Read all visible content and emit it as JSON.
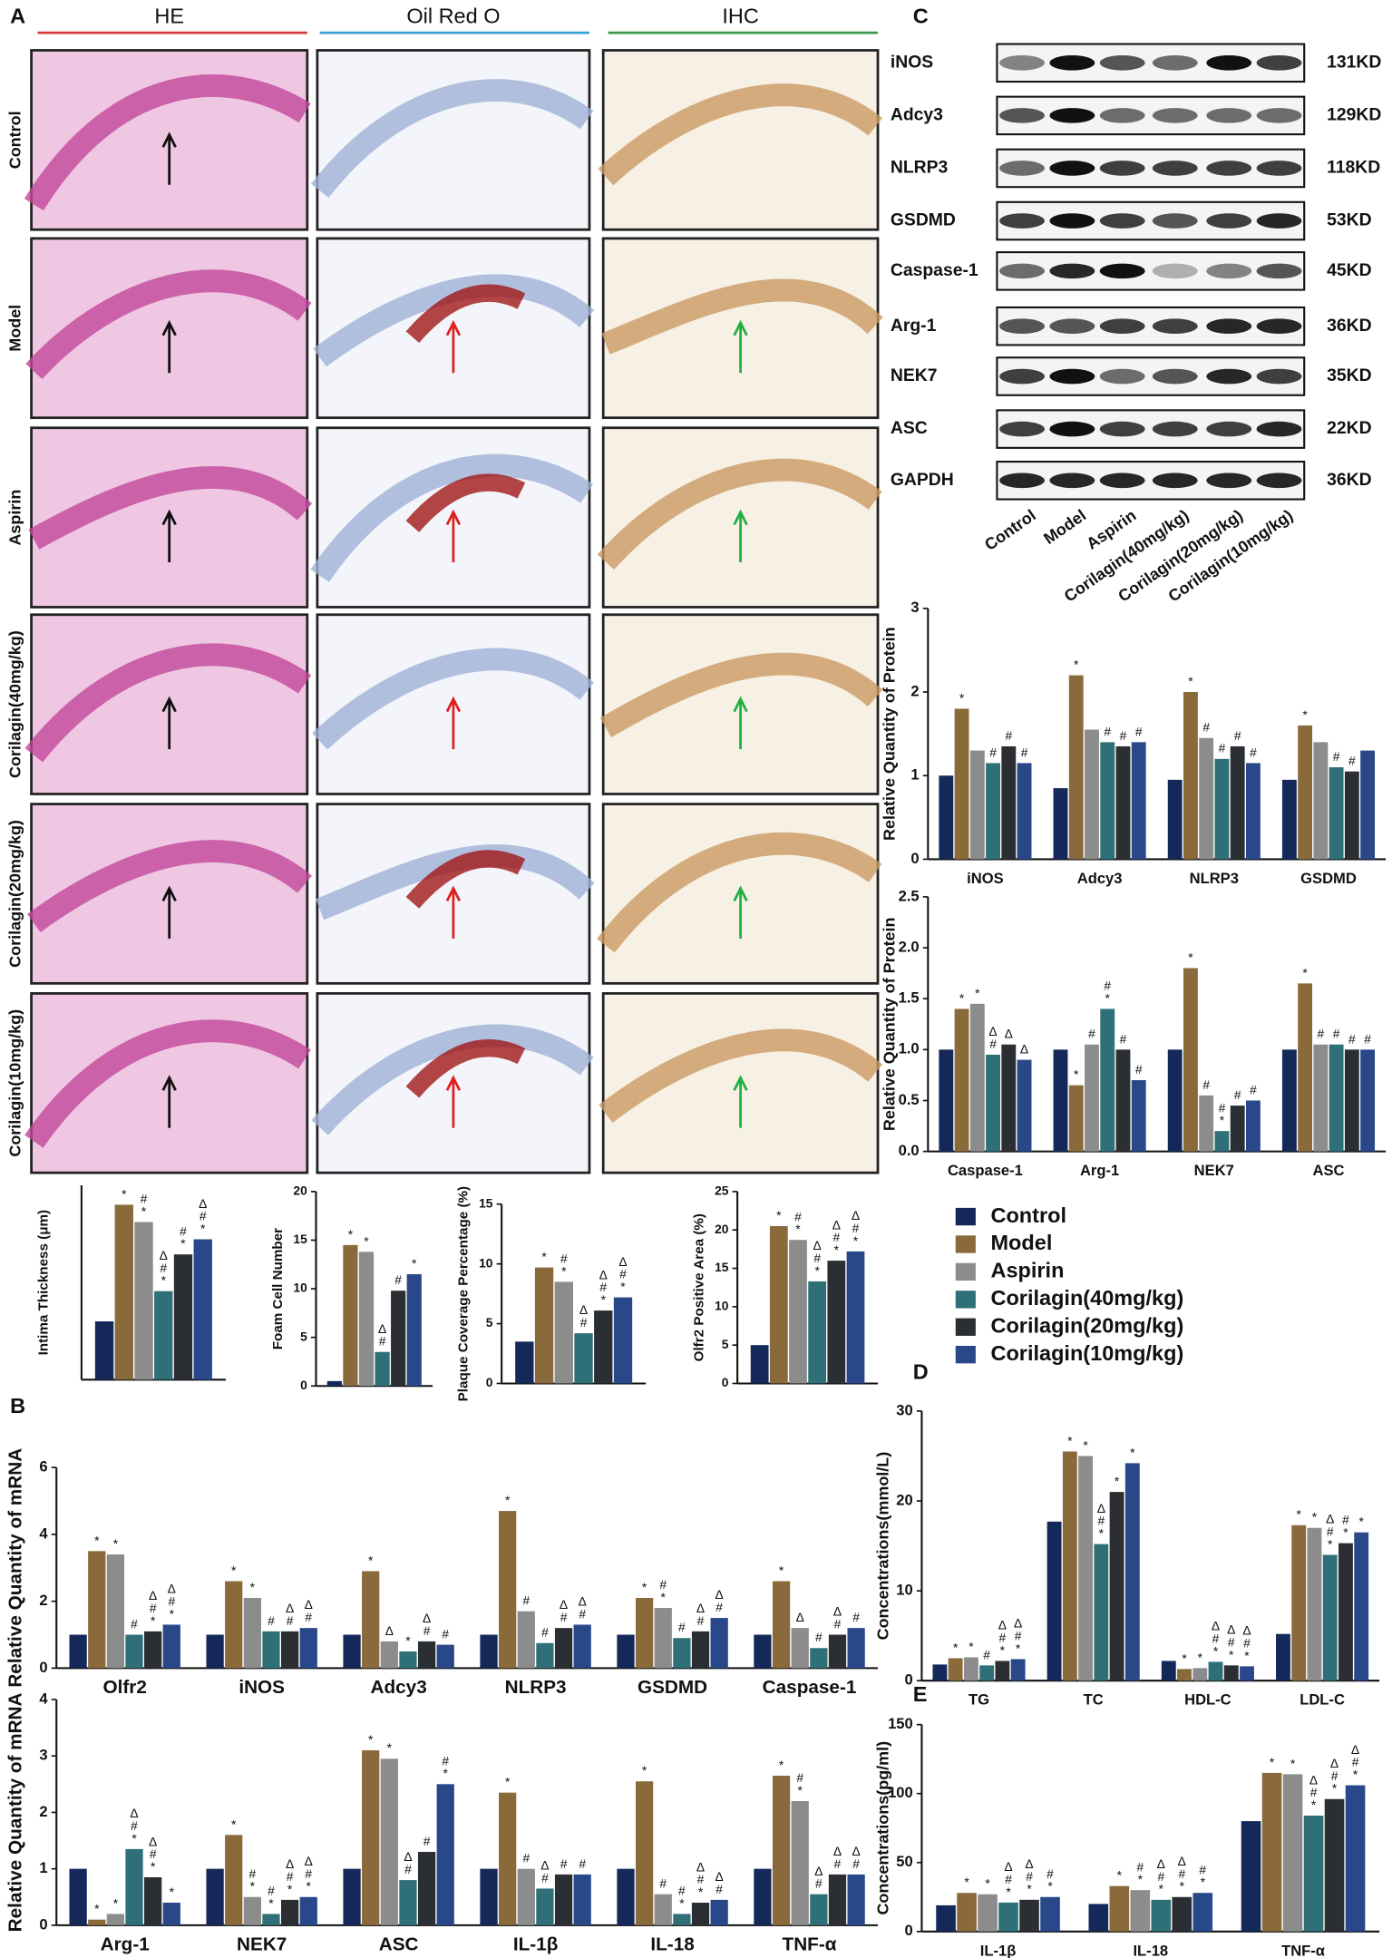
{
  "panel_labels": [
    "A",
    "B",
    "C",
    "D",
    "E"
  ],
  "micrographs": {
    "columns": [
      "HE",
      "Oil Red O",
      "IHC"
    ],
    "rows": [
      "Control",
      "Model",
      "Aspirin",
      "Corilagin(40mg/kg)",
      "Corilagin(20mg/kg)",
      "Corilagin(10mg/kg)"
    ]
  },
  "blot": {
    "proteins": [
      "iNOS",
      "Adcy3",
      "NLRP3",
      "GSDMD",
      "Caspase-1",
      "Arg-1",
      "NEK7",
      "ASC",
      "GAPDH"
    ],
    "sizes": [
      "131KD",
      "129KD",
      "118KD",
      "53KD",
      "45KD",
      "36KD",
      "35KD",
      "22KD",
      "36KD"
    ],
    "lanes": [
      "Control",
      "Model",
      "Aspirin",
      "Corilagin(40mg/kg)",
      "Corilagin(20mg/kg)",
      "Corilagin(10mg/kg)"
    ]
  },
  "chart_data": [
    {
      "type": "bar",
      "ylabel": "Intima Thickness (μm)",
      "categories": [
        null
      ],
      "ylim": [
        0,
        90
      ],
      "series": [
        {
          "name": "Control",
          "color": "#14285a",
          "values": [
            27
          ]
        },
        {
          "name": "Model",
          "color": "#8a6a3b",
          "values": [
            81
          ],
          "sig": [
            "*"
          ]
        },
        {
          "name": "Aspirin",
          "color": "#8c8c8c",
          "values": [
            73
          ],
          "sig": [
            "#*"
          ]
        },
        {
          "name": "Corilagin(40mg/kg)",
          "color": "#2f6f77",
          "values": [
            41
          ],
          "sig": [
            "Δ#*"
          ]
        },
        {
          "name": "Corilagin(20mg/kg)",
          "color": "#2b2e33",
          "values": [
            58
          ],
          "sig": [
            "#*"
          ]
        },
        {
          "name": "Corilagin(10mg/kg)",
          "color": "#28488a",
          "values": [
            65
          ],
          "sig": [
            "Δ#*"
          ]
        }
      ]
    },
    {
      "type": "bar",
      "ylabel": "Foam Cell Number",
      "categories": [
        null
      ],
      "ylim": [
        0,
        20
      ],
      "yticks": [
        0,
        5,
        10,
        15,
        20
      ],
      "series": [
        {
          "name": "Control",
          "color": "#14285a",
          "values": [
            0.5
          ]
        },
        {
          "name": "Model",
          "color": "#8a6a3b",
          "values": [
            14.5
          ],
          "sig": [
            "*"
          ]
        },
        {
          "name": "Aspirin",
          "color": "#8c8c8c",
          "values": [
            13.8
          ],
          "sig": [
            "*"
          ]
        },
        {
          "name": "Corilagin(40mg/kg)",
          "color": "#2f6f77",
          "values": [
            3.5
          ],
          "sig": [
            "Δ#"
          ]
        },
        {
          "name": "Corilagin(20mg/kg)",
          "color": "#2b2e33",
          "values": [
            9.8
          ],
          "sig": [
            "#"
          ]
        },
        {
          "name": "Corilagin(10mg/kg)",
          "color": "#28488a",
          "values": [
            11.5
          ],
          "sig": [
            "*"
          ]
        }
      ]
    },
    {
      "type": "bar",
      "ylabel": "Plaque Coverage Percentage (%)",
      "categories": [
        null
      ],
      "ylim": [
        0,
        15
      ],
      "yticks": [
        0,
        5,
        10,
        15
      ],
      "series": [
        {
          "name": "Control",
          "color": "#14285a",
          "values": [
            3.5
          ]
        },
        {
          "name": "Model",
          "color": "#8a6a3b",
          "values": [
            9.7
          ],
          "sig": [
            "*"
          ]
        },
        {
          "name": "Aspirin",
          "color": "#8c8c8c",
          "values": [
            8.5
          ],
          "sig": [
            "#*"
          ]
        },
        {
          "name": "Corilagin(40mg/kg)",
          "color": "#2f6f77",
          "values": [
            4.2
          ],
          "sig": [
            "Δ#"
          ]
        },
        {
          "name": "Corilagin(20mg/kg)",
          "color": "#2b2e33",
          "values": [
            6.1
          ],
          "sig": [
            "Δ#*"
          ]
        },
        {
          "name": "Corilagin(10mg/kg)",
          "color": "#28488a",
          "values": [
            7.2
          ],
          "sig": [
            "Δ#*"
          ]
        }
      ]
    },
    {
      "type": "bar",
      "ylabel": "Olfr2 Positive Area (%)",
      "categories": [
        null
      ],
      "ylim": [
        0,
        25
      ],
      "yticks": [
        0,
        5,
        10,
        15,
        20,
        25
      ],
      "series": [
        {
          "name": "Control",
          "color": "#14285a",
          "values": [
            5
          ]
        },
        {
          "name": "Model",
          "color": "#8a6a3b",
          "values": [
            20.5
          ],
          "sig": [
            "*"
          ]
        },
        {
          "name": "Aspirin",
          "color": "#8c8c8c",
          "values": [
            18.7
          ],
          "sig": [
            "#*"
          ]
        },
        {
          "name": "Corilagin(40mg/kg)",
          "color": "#2f6f77",
          "values": [
            13.3
          ],
          "sig": [
            "Δ#*"
          ]
        },
        {
          "name": "Corilagin(20mg/kg)",
          "color": "#2b2e33",
          "values": [
            16
          ],
          "sig": [
            "Δ#*"
          ]
        },
        {
          "name": "Corilagin(10mg/kg)",
          "color": "#28488a",
          "values": [
            17.2
          ],
          "sig": [
            "Δ#*"
          ]
        }
      ]
    },
    {
      "type": "bar",
      "ylabel": "Relative Quantity of mRNA",
      "categories": [
        "Olfr2",
        "iNOS",
        "Adcy3",
        "NLRP3",
        "GSDMD",
        "Caspase-1"
      ],
      "ylim": [
        0,
        6
      ],
      "yticks": [
        0,
        2,
        4,
        6
      ],
      "series": [
        {
          "name": "Control",
          "color": "#14285a",
          "values": [
            1,
            1,
            1,
            1,
            1,
            1
          ]
        },
        {
          "name": "Model",
          "color": "#8a6a3b",
          "values": [
            3.5,
            2.6,
            2.9,
            4.7,
            2.1,
            2.6
          ],
          "sig": [
            "*",
            "*",
            "*",
            "*",
            "*",
            "*"
          ]
        },
        {
          "name": "Aspirin",
          "color": "#8c8c8c",
          "values": [
            3.4,
            2.1,
            0.8,
            1.7,
            1.8,
            1.2
          ],
          "sig": [
            "*",
            "*",
            "Δ",
            "#",
            "#*",
            "Δ"
          ]
        },
        {
          "name": "Corilagin(40mg/kg)",
          "color": "#2f6f77",
          "values": [
            1.0,
            1.1,
            0.5,
            0.75,
            0.9,
            0.6
          ],
          "sig": [
            "#",
            "#",
            "*",
            "#",
            "#",
            "#"
          ]
        },
        {
          "name": "Corilagin(20mg/kg)",
          "color": "#2b2e33",
          "values": [
            1.1,
            1.1,
            0.8,
            1.2,
            1.1,
            1.0
          ],
          "sig": [
            "Δ#*",
            "Δ#",
            "Δ#",
            "Δ#",
            "Δ#",
            "Δ#"
          ]
        },
        {
          "name": "Corilagin(10mg/kg)",
          "color": "#28488a",
          "values": [
            1.3,
            1.2,
            0.7,
            1.3,
            1.5,
            1.2
          ],
          "sig": [
            "Δ#*",
            "Δ#",
            "#",
            "Δ#",
            "Δ#",
            "#"
          ]
        }
      ]
    },
    {
      "type": "bar",
      "ylabel": "Relative Quantity of mRNA",
      "categories": [
        "Arg-1",
        "NEK7",
        "ASC",
        "IL-1β",
        "IL-18",
        "TNF-α"
      ],
      "ylim": [
        0,
        4
      ],
      "yticks": [
        0,
        1,
        2,
        3,
        4
      ],
      "series": [
        {
          "name": "Control",
          "color": "#14285a",
          "values": [
            1,
            1,
            1,
            1,
            1,
            1
          ]
        },
        {
          "name": "Model",
          "color": "#8a6a3b",
          "values": [
            0.1,
            1.6,
            3.1,
            2.35,
            2.55,
            2.65
          ],
          "sig": [
            "*",
            "*",
            "*",
            "*",
            "*",
            "*"
          ]
        },
        {
          "name": "Aspirin",
          "color": "#8c8c8c",
          "values": [
            0.2,
            0.5,
            2.95,
            1.0,
            0.55,
            2.2
          ],
          "sig": [
            "*",
            "#*",
            "*",
            "#",
            "#",
            "#*"
          ]
        },
        {
          "name": "Corilagin(40mg/kg)",
          "color": "#2f6f77",
          "values": [
            1.35,
            0.2,
            0.8,
            0.65,
            0.2,
            0.55
          ],
          "sig": [
            "Δ#*",
            "#*",
            "Δ#",
            "Δ#",
            "#*",
            "Δ#"
          ]
        },
        {
          "name": "Corilagin(20mg/kg)",
          "color": "#2b2e33",
          "values": [
            0.85,
            0.45,
            1.3,
            0.9,
            0.4,
            0.9
          ],
          "sig": [
            "Δ#*",
            "Δ#*",
            "#",
            "#",
            "Δ#*",
            "Δ#"
          ]
        },
        {
          "name": "Corilagin(10mg/kg)",
          "color": "#28488a",
          "values": [
            0.4,
            0.5,
            2.5,
            0.9,
            0.45,
            0.9
          ],
          "sig": [
            "*",
            "Δ#*",
            "#*",
            "#",
            "Δ#",
            "Δ#"
          ]
        }
      ]
    },
    {
      "type": "bar",
      "ylabel": "Relative Quantity of Protein",
      "categories": [
        "iNOS",
        "Adcy3",
        "NLRP3",
        "GSDMD"
      ],
      "ylim": [
        0,
        3
      ],
      "yticks": [
        0,
        1,
        2,
        3
      ],
      "series": [
        {
          "name": "Control",
          "color": "#14285a",
          "values": [
            1,
            0.85,
            0.95,
            0.95
          ]
        },
        {
          "name": "Model",
          "color": "#8a6a3b",
          "values": [
            1.8,
            2.2,
            2.0,
            1.6
          ],
          "sig": [
            "*",
            "*",
            "*",
            "*"
          ]
        },
        {
          "name": "Aspirin",
          "color": "#8c8c8c",
          "values": [
            1.3,
            1.55,
            1.45,
            1.4
          ],
          "sig": [
            null,
            null,
            "#",
            null
          ]
        },
        {
          "name": "Corilagin(40mg/kg)",
          "color": "#2f6f77",
          "values": [
            1.15,
            1.4,
            1.2,
            1.1
          ],
          "sig": [
            "#",
            "#",
            "#",
            "#"
          ]
        },
        {
          "name": "Corilagin(20mg/kg)",
          "color": "#2b2e33",
          "values": [
            1.35,
            1.35,
            1.35,
            1.05
          ],
          "sig": [
            "#",
            "#",
            "#",
            "#"
          ]
        },
        {
          "name": "Corilagin(10mg/kg)",
          "color": "#28488a",
          "values": [
            1.15,
            1.4,
            1.15,
            1.3
          ],
          "sig": [
            "#",
            "#",
            "#",
            null
          ]
        }
      ]
    },
    {
      "type": "bar",
      "ylabel": "Relative Quantity of Protein",
      "categories": [
        "Caspase-1",
        "Arg-1",
        "NEK7",
        "ASC"
      ],
      "ylim": [
        0,
        2.5
      ],
      "yticks": [
        {
          "value": 0,
          "label": "0.0"
        },
        {
          "value": 0.5,
          "label": "0.5"
        },
        {
          "value": 1,
          "label": "1.0"
        },
        {
          "value": 1.5,
          "label": "1.5"
        },
        {
          "value": 2,
          "label": "2.0"
        },
        {
          "value": 2.5,
          "label": "2.5"
        }
      ],
      "series": [
        {
          "name": "Control",
          "color": "#14285a",
          "values": [
            1,
            1,
            1,
            1
          ]
        },
        {
          "name": "Model",
          "color": "#8a6a3b",
          "values": [
            1.4,
            0.65,
            1.8,
            1.65
          ],
          "sig": [
            "*",
            "*",
            "*",
            "*"
          ]
        },
        {
          "name": "Aspirin",
          "color": "#8c8c8c",
          "values": [
            1.45,
            1.05,
            0.55,
            1.05
          ],
          "sig": [
            "*",
            "#",
            "#",
            "#"
          ]
        },
        {
          "name": "Corilagin(40mg/kg)",
          "color": "#2f6f77",
          "values": [
            0.95,
            1.4,
            0.2,
            1.05
          ],
          "sig": [
            "Δ#",
            "#*",
            "#*",
            "#"
          ]
        },
        {
          "name": "Corilagin(20mg/kg)",
          "color": "#2b2e33",
          "values": [
            1.05,
            1.0,
            0.45,
            1.0
          ],
          "sig": [
            "Δ",
            "#",
            "#",
            "#"
          ]
        },
        {
          "name": "Corilagin(10mg/kg)",
          "color": "#28488a",
          "values": [
            0.9,
            0.7,
            0.5,
            1.0
          ],
          "sig": [
            "Δ",
            "#",
            "#",
            "#"
          ]
        }
      ]
    },
    {
      "type": "bar",
      "ylabel": "Concentrations(mmol/L)",
      "categories": [
        "TG",
        "TC",
        "HDL-C",
        "LDL-C"
      ],
      "ylim": [
        0,
        30
      ],
      "yticks": [
        0,
        10,
        20,
        30
      ],
      "series": [
        {
          "name": "Control",
          "color": "#14285a",
          "values": [
            1.8,
            17.7,
            2.2,
            5.2
          ]
        },
        {
          "name": "Model",
          "color": "#8a6a3b",
          "values": [
            2.5,
            25.5,
            1.3,
            17.3
          ],
          "sig": [
            "*",
            "*",
            "*",
            "*"
          ]
        },
        {
          "name": "Aspirin",
          "color": "#8c8c8c",
          "values": [
            2.6,
            25,
            1.4,
            17
          ],
          "sig": [
            "*",
            "*",
            "*",
            "*"
          ]
        },
        {
          "name": "Corilagin(40mg/kg)",
          "color": "#2f6f77",
          "values": [
            1.7,
            15.2,
            2.1,
            14
          ],
          "sig": [
            "#",
            "Δ#*",
            "Δ#*",
            "Δ#*"
          ]
        },
        {
          "name": "Corilagin(20mg/kg)",
          "color": "#2b2e33",
          "values": [
            2.2,
            21,
            1.7,
            15.3
          ],
          "sig": [
            "Δ#*",
            "*",
            "Δ#*",
            "#*"
          ]
        },
        {
          "name": "Corilagin(10mg/kg)",
          "color": "#28488a",
          "values": [
            2.4,
            24.2,
            1.6,
            16.5
          ],
          "sig": [
            "Δ#*",
            "*",
            "Δ#*",
            "*"
          ]
        }
      ]
    },
    {
      "type": "bar",
      "ylabel": "Concentrations(pg/ml)",
      "categories": [
        "IL-1β",
        "IL-18",
        "TNF-α"
      ],
      "ylim": [
        0,
        150
      ],
      "yticks": [
        0,
        50,
        100,
        150
      ],
      "series": [
        {
          "name": "Control",
          "color": "#14285a",
          "values": [
            19,
            20,
            80
          ]
        },
        {
          "name": "Model",
          "color": "#8a6a3b",
          "values": [
            28,
            33,
            115
          ],
          "sig": [
            "*",
            "*",
            "*"
          ]
        },
        {
          "name": "Aspirin",
          "color": "#8c8c8c",
          "values": [
            27,
            30,
            114
          ],
          "sig": [
            "*",
            "#*",
            "*"
          ]
        },
        {
          "name": "Corilagin(40mg/kg)",
          "color": "#2f6f77",
          "values": [
            21,
            23,
            84
          ],
          "sig": [
            "Δ#*",
            "Δ#*",
            "Δ#*"
          ]
        },
        {
          "name": "Corilagin(20mg/kg)",
          "color": "#2b2e33",
          "values": [
            23,
            25,
            96
          ],
          "sig": [
            "Δ#*",
            "Δ#*",
            "Δ#*"
          ]
        },
        {
          "name": "Corilagin(10mg/kg)",
          "color": "#28488a",
          "values": [
            25,
            28,
            106
          ],
          "sig": [
            "#*",
            "#*",
            "Δ#*"
          ]
        }
      ]
    }
  ]
}
